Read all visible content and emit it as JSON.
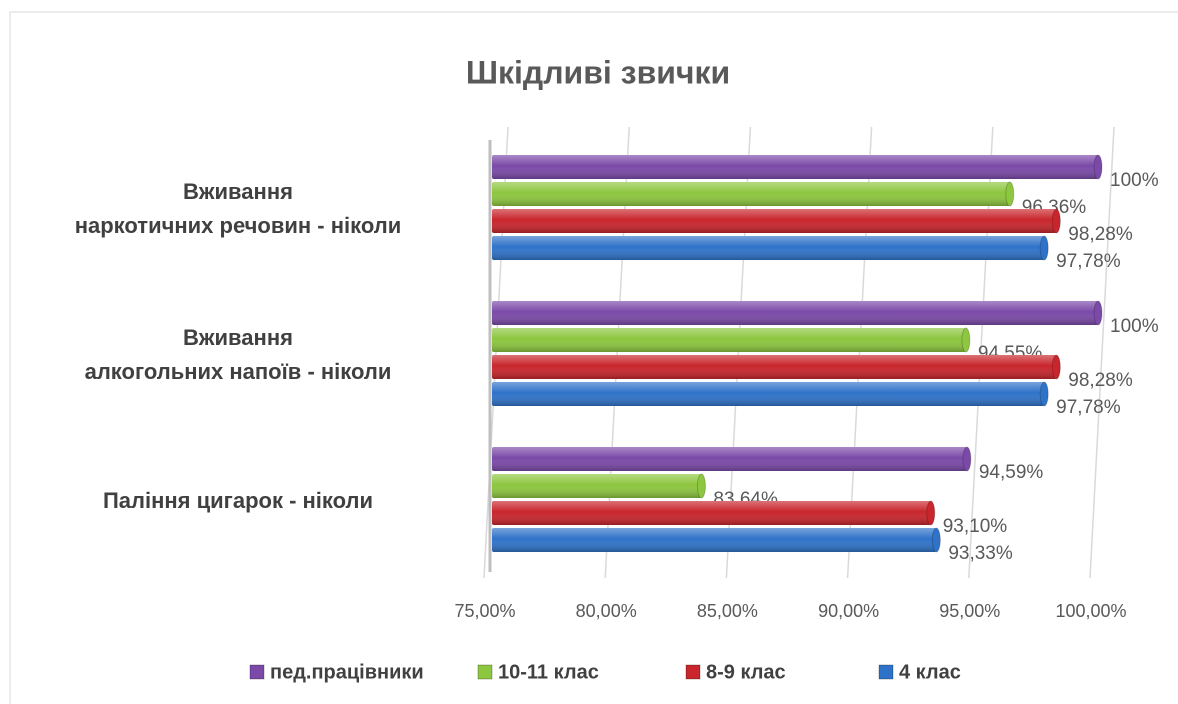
{
  "chart_data": {
    "type": "bar",
    "orientation": "horizontal",
    "title": "Шкідливі звички",
    "categories": [
      "Вживання\nнаркотичних речовин - ніколи",
      "Вживання\nалкогольних напоїв - ніколи",
      "Паління цигарок - ніколи"
    ],
    "series": [
      {
        "name": "пед.працівники",
        "color": "#7b4aa8",
        "values": [
          100,
          100,
          94.59
        ],
        "value_labels": [
          "100%",
          "100%",
          "94,59%"
        ]
      },
      {
        "name": "10-11 клас",
        "color": "#8dc63f",
        "values": [
          96.36,
          94.55,
          83.64
        ],
        "value_labels": [
          "96,36%",
          "94,55%",
          "83,64%"
        ]
      },
      {
        "name": "8-9 клас",
        "color": "#c8262c",
        "values": [
          98.28,
          98.28,
          93.1
        ],
        "value_labels": [
          "98,28%",
          "98,28%",
          "93,10%"
        ]
      },
      {
        "name": "4 клас",
        "color": "#2f73c9",
        "values": [
          97.78,
          97.78,
          93.33
        ],
        "value_labels": [
          "97,78%",
          "97,78%",
          "93,33%"
        ]
      }
    ],
    "xlim": [
      75,
      100
    ],
    "xticks": [
      {
        "value": 75,
        "label": "75,00%"
      },
      {
        "value": 80,
        "label": "80,00%"
      },
      {
        "value": 85,
        "label": "85,00%"
      },
      {
        "value": 90,
        "label": "90,00%"
      },
      {
        "value": 95,
        "label": "95,00%"
      },
      {
        "value": 100,
        "label": "100,00%"
      }
    ],
    "grid": true,
    "legend": "bottom"
  }
}
